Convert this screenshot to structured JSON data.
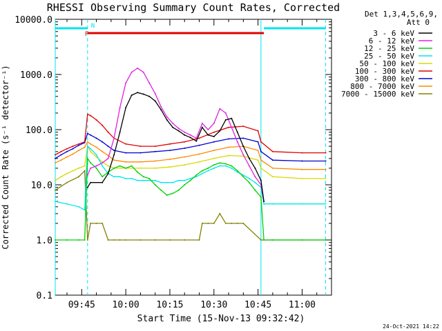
{
  "chart_data": {
    "type": "line",
    "title": "RHESSI Observing Summary Count Rates, Corrected",
    "xlabel": "Start Time (15-Nov-13 09:32:42)",
    "ylabel": "Corrected Count Rate (s⁻¹ detector⁻¹)",
    "yscale": "log",
    "ylim": [
      0.1,
      10000
    ],
    "xlim": [
      "09:36",
      "11:10"
    ],
    "x_unit": "HH:MM UT",
    "yticks": [
      "0.1",
      "1.0",
      "10.0",
      "100.0",
      "1000.0",
      "10000.0"
    ],
    "xticks": [
      "09:45",
      "10:00",
      "10:15",
      "10:30",
      "10:45",
      "11:00"
    ],
    "legend_header": [
      "Det 1,3,4,5,6,9,",
      "Att 0"
    ],
    "legend_position": "right",
    "footer_date": "24-Oct-2021 14:22",
    "flag_labels": {
      "night": "N",
      "flare": "F"
    },
    "flag_colors": {
      "night": "#00e5ee",
      "flare": "#e00000"
    },
    "flags": {
      "night": [
        [
          "09:36",
          "09:47"
        ],
        [
          "10:47",
          "11:08"
        ]
      ],
      "flare": [
        [
          "09:47",
          "10:47"
        ]
      ]
    },
    "vlines_solid": [
      "09:36",
      "10:46"
    ],
    "vlines_dashed": [
      "09:47",
      "11:08"
    ],
    "series": [
      {
        "name": "3 - 6 keV",
        "color": "#000000",
        "x": [
          "09:47",
          "09:48",
          "09:52",
          "09:54",
          "09:56",
          "09:58",
          "10:00",
          "10:02",
          "10:04",
          "10:06",
          "10:08",
          "10:10",
          "10:12",
          "10:14",
          "10:16",
          "10:18",
          "10:20",
          "10:22",
          "10:24",
          "10:26",
          "10:28",
          "10:30",
          "10:32",
          "10:34",
          "10:36",
          "10:38",
          "10:40",
          "10:42",
          "10:44",
          "10:46",
          "10:47"
        ],
        "y": [
          9,
          11,
          11,
          16,
          35,
          90,
          250,
          420,
          470,
          440,
          400,
          330,
          230,
          150,
          110,
          95,
          80,
          72,
          62,
          110,
          80,
          75,
          95,
          150,
          160,
          90,
          50,
          30,
          20,
          12,
          5
        ]
      },
      {
        "name": "6 - 12 keV",
        "color": "#e020e0",
        "x": [
          "09:47",
          "09:48",
          "09:50",
          "09:52",
          "09:54",
          "09:56",
          "09:58",
          "10:00",
          "10:02",
          "10:04",
          "10:06",
          "10:08",
          "10:10",
          "10:12",
          "10:14",
          "10:16",
          "10:18",
          "10:20",
          "10:22",
          "10:24",
          "10:26",
          "10:28",
          "10:30",
          "10:32",
          "10:34",
          "10:36",
          "10:38",
          "10:40",
          "10:42",
          "10:44",
          "10:46",
          "10:47"
        ],
        "y": [
          15,
          20,
          22,
          25,
          30,
          70,
          250,
          700,
          1100,
          1300,
          1100,
          700,
          450,
          260,
          170,
          130,
          105,
          90,
          80,
          70,
          130,
          100,
          130,
          240,
          200,
          110,
          60,
          35,
          22,
          14,
          10,
          5
        ]
      },
      {
        "name": "12 - 25 keV",
        "color": "#00d000",
        "x": [
          "09:36",
          "09:40",
          "09:44",
          "09:46",
          "09:47",
          "09:48",
          "09:50",
          "09:52",
          "09:54",
          "09:56",
          "09:58",
          "10:00",
          "10:02",
          "10:04",
          "10:06",
          "10:08",
          "10:10",
          "10:12",
          "10:14",
          "10:16",
          "10:18",
          "10:20",
          "10:22",
          "10:24",
          "10:26",
          "10:28",
          "10:30",
          "10:32",
          "10:34",
          "10:36",
          "10:38",
          "10:40",
          "10:42",
          "10:44",
          "10:46",
          "10:47",
          "10:50",
          "11:00",
          "11:08"
        ],
        "y": [
          1.0,
          1.0,
          1.0,
          1.0,
          30,
          25,
          20,
          14,
          17,
          20,
          22,
          20,
          22,
          17,
          14,
          13,
          10,
          8,
          6.5,
          7,
          8,
          10,
          12,
          15,
          18,
          20,
          23,
          25,
          24,
          22,
          18,
          14,
          11,
          8,
          6,
          1.0,
          1.0,
          1.0,
          1.0
        ]
      },
      {
        "name": "25 - 50 keV",
        "color": "#00e5ee",
        "x": [
          "09:36",
          "09:40",
          "09:44",
          "09:46",
          "09:47",
          "09:48",
          "09:50",
          "09:52",
          "09:54",
          "09:56",
          "09:58",
          "10:00",
          "10:02",
          "10:04",
          "10:06",
          "10:08",
          "10:10",
          "10:12",
          "10:14",
          "10:16",
          "10:18",
          "10:20",
          "10:22",
          "10:24",
          "10:26",
          "10:28",
          "10:30",
          "10:32",
          "10:34",
          "10:36",
          "10:38",
          "10:40",
          "10:42",
          "10:44",
          "10:46",
          "10:47",
          "10:50",
          "11:00",
          "11:08"
        ],
        "y": [
          5,
          4.5,
          4,
          3.5,
          50,
          45,
          35,
          22,
          16,
          14,
          14,
          13,
          13,
          12,
          12,
          12,
          12,
          11,
          11,
          11,
          12,
          12,
          13,
          14,
          16,
          18,
          20,
          22,
          22,
          20,
          17,
          15,
          13,
          11,
          9,
          4.5,
          4.5,
          4.5,
          4.5
        ]
      },
      {
        "name": "50 - 100 keV",
        "color": "#d8d800",
        "x": [
          "09:36",
          "09:38",
          "09:40",
          "09:42",
          "09:44",
          "09:46",
          "09:47",
          "09:48",
          "09:50",
          "09:52",
          "09:54",
          "09:56",
          "10:00",
          "10:05",
          "10:10",
          "10:15",
          "10:20",
          "10:25",
          "10:30",
          "10:35",
          "10:40",
          "10:45",
          "10:46",
          "10:50",
          "11:00",
          "11:08"
        ],
        "y": [
          12,
          14,
          16,
          18,
          20,
          22,
          50,
          40,
          32,
          26,
          22,
          20,
          20,
          20,
          20,
          21,
          23,
          26,
          30,
          34,
          33,
          28,
          20,
          14,
          13,
          13
        ]
      },
      {
        "name": "100 - 300 keV",
        "color": "#e00000",
        "x": [
          "09:36",
          "09:38",
          "09:40",
          "09:42",
          "09:44",
          "09:46",
          "09:47",
          "09:48",
          "09:50",
          "09:52",
          "09:54",
          "09:56",
          "10:00",
          "10:05",
          "10:10",
          "10:15",
          "10:20",
          "10:25",
          "10:30",
          "10:35",
          "10:40",
          "10:45",
          "10:46",
          "10:50",
          "11:00",
          "11:08"
        ],
        "y": [
          35,
          40,
          45,
          50,
          55,
          60,
          190,
          180,
          150,
          120,
          90,
          70,
          55,
          50,
          50,
          55,
          60,
          70,
          90,
          110,
          115,
          95,
          60,
          40,
          38,
          38
        ]
      },
      {
        "name": "300 - 800 keV",
        "color": "#0000d0",
        "x": [
          "09:36",
          "09:38",
          "09:40",
          "09:42",
          "09:44",
          "09:46",
          "09:47",
          "09:48",
          "09:50",
          "09:52",
          "09:54",
          "09:56",
          "10:00",
          "10:05",
          "10:10",
          "10:15",
          "10:20",
          "10:25",
          "10:30",
          "10:35",
          "10:40",
          "10:45",
          "10:46",
          "10:50",
          "11:00",
          "11:08"
        ],
        "y": [
          30,
          35,
          40,
          45,
          52,
          58,
          85,
          80,
          70,
          60,
          50,
          42,
          38,
          38,
          40,
          42,
          46,
          52,
          60,
          68,
          70,
          60,
          40,
          28,
          27,
          27
        ]
      },
      {
        "name": "800 - 7000 keV",
        "color": "#ff8800",
        "x": [
          "09:36",
          "09:38",
          "09:40",
          "09:42",
          "09:44",
          "09:46",
          "09:47",
          "09:48",
          "09:50",
          "09:52",
          "09:54",
          "09:56",
          "10:00",
          "10:05",
          "10:10",
          "10:15",
          "10:20",
          "10:25",
          "10:30",
          "10:35",
          "10:40",
          "10:45",
          "10:46",
          "10:50",
          "11:00",
          "11:08"
        ],
        "y": [
          25,
          28,
          32,
          36,
          42,
          48,
          60,
          55,
          48,
          40,
          34,
          28,
          26,
          26,
          27,
          29,
          32,
          36,
          42,
          48,
          50,
          42,
          28,
          20,
          19,
          19
        ]
      },
      {
        "name": "7000 - 15000 keV",
        "color": "#808000",
        "x": [
          "09:36",
          "09:40",
          "09:44",
          "09:46",
          "09:47",
          "09:48",
          "09:50",
          "09:52",
          "09:54",
          "09:56",
          "09:58",
          "10:00",
          "10:05",
          "10:10",
          "10:15",
          "10:20",
          "10:25",
          "10:26",
          "10:28",
          "10:30",
          "10:32",
          "10:34",
          "10:36",
          "10:38",
          "10:40",
          "10:46",
          "10:47",
          "11:08"
        ],
        "y": [
          8,
          11,
          14,
          18,
          1.0,
          2,
          2,
          2,
          1.0,
          1.0,
          1.0,
          1.0,
          1.0,
          1.0,
          1.0,
          1.0,
          1.0,
          2,
          2,
          2,
          3,
          2,
          2,
          2,
          2,
          1.0,
          1.0,
          1.0
        ]
      }
    ]
  }
}
